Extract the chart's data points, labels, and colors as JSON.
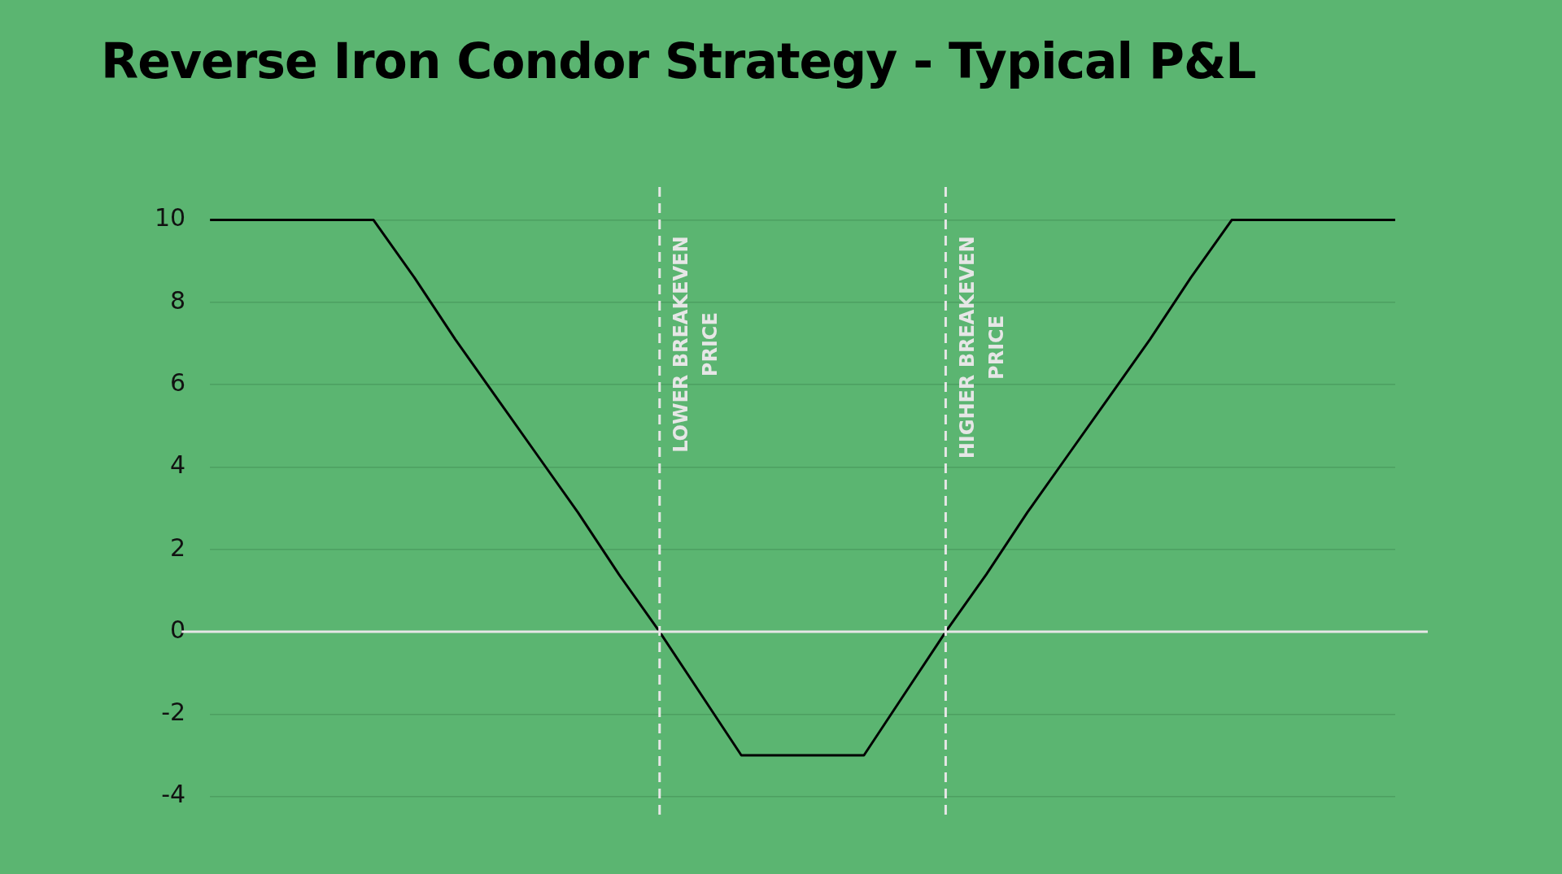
{
  "chart_data": {
    "type": "line",
    "title": "Reverse Iron Condor Strategy - Typical P&L",
    "categories": [
      null,
      null,
      null,
      null,
      null,
      null,
      null,
      null,
      null,
      null,
      null,
      null,
      null,
      null,
      null,
      null,
      null,
      null,
      null,
      null,
      null,
      null,
      null,
      null,
      null,
      null,
      null,
      null,
      null,
      null
    ],
    "series": [
      {
        "color": "#000000",
        "values": [
          10,
          10,
          10,
          10,
          10,
          8.6,
          7.1,
          5.7,
          4.3,
          2.9,
          1.4,
          0,
          -1.5,
          -3,
          -3,
          -3,
          -3,
          -1.5,
          0,
          1.4,
          2.9,
          4.3,
          5.7,
          7.1,
          8.6,
          10,
          10,
          10,
          10,
          10
        ]
      }
    ],
    "ylim": [
      -4.5,
      10.8
    ],
    "yticks": [
      -4,
      -2,
      0,
      2,
      4,
      6,
      8,
      10
    ],
    "tick_labels": "y",
    "grid": "y",
    "legend": false,
    "marker": "none",
    "line_style": "solid",
    "annotations": [
      "LOWER BREAKEVEN PRICE",
      "HIGHER BREAKEVEN PRICE"
    ],
    "ref_lines": [
      {
        "axis": "y",
        "value": 0,
        "color": "#e6e6e6",
        "line_style": "solid"
      }
    ]
  }
}
